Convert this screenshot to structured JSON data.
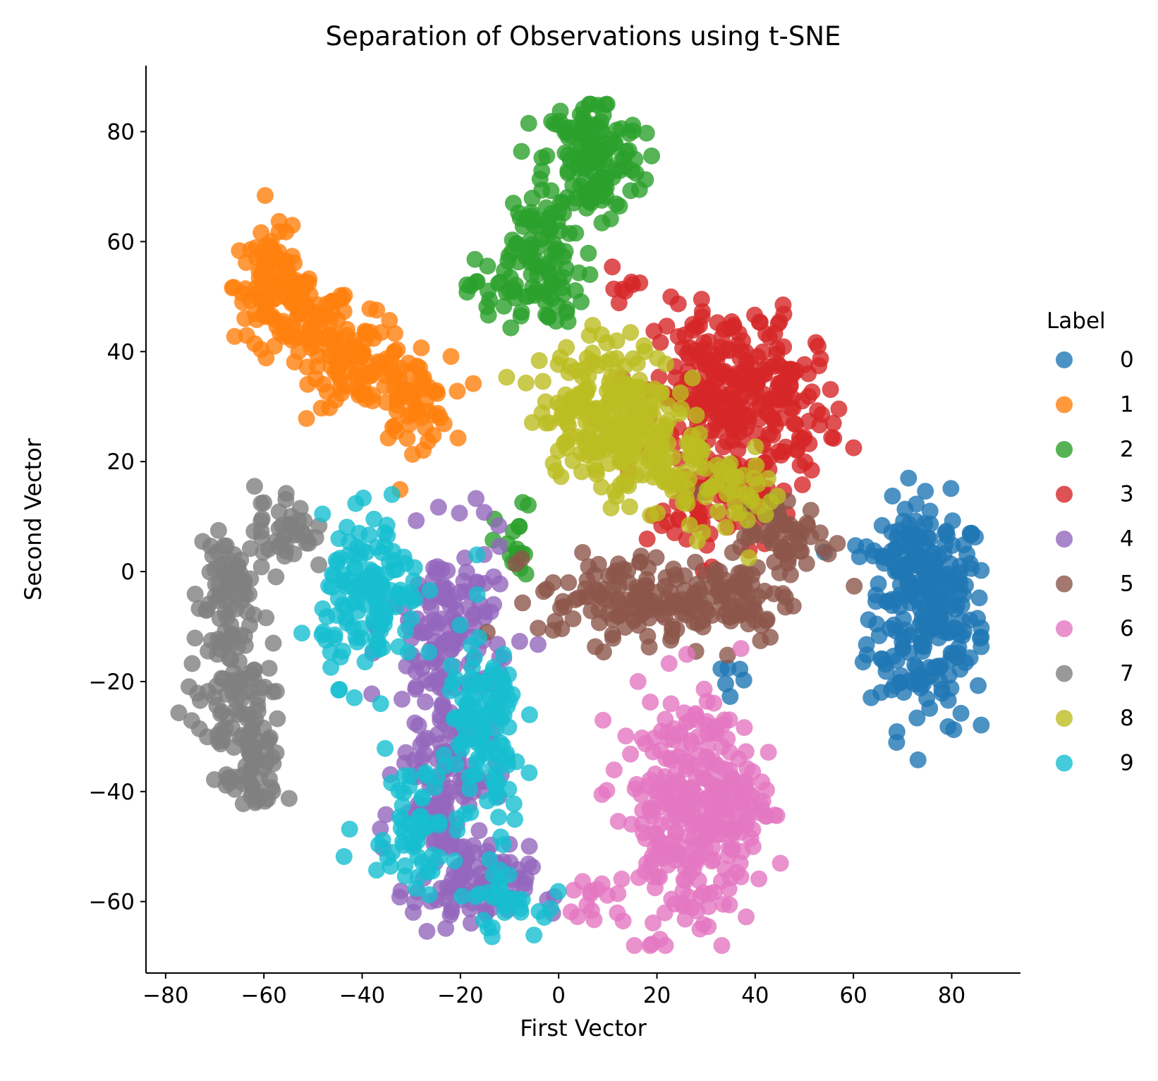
{
  "chart_data": {
    "type": "scatter",
    "title": "Separation of Observations using t-SNE",
    "xlabel": "First Vector",
    "ylabel": "Second Vector",
    "xlim": [
      -84,
      94
    ],
    "ylim": [
      -73,
      92
    ],
    "xticks": [
      -80,
      -60,
      -40,
      -20,
      0,
      20,
      40,
      60,
      80
    ],
    "yticks": [
      -60,
      -40,
      -20,
      0,
      20,
      40,
      60,
      80
    ],
    "xtick_labels": [
      "−80",
      "−60",
      "−40",
      "−20",
      "0",
      "20",
      "40",
      "60",
      "80"
    ],
    "ytick_labels": [
      "−60",
      "−40",
      "−20",
      "0",
      "20",
      "40",
      "60",
      "80"
    ],
    "grid": false,
    "legend": {
      "title": "Label",
      "placement": "right-outside"
    },
    "series": [
      {
        "name": "0",
        "color": "#1f77b4",
        "clusters": [
          {
            "cx": 75,
            "cy": -8,
            "sx": 6,
            "sy": 10,
            "n": 220
          },
          {
            "cx": 72,
            "cy": 4,
            "sx": 4,
            "sy": 3,
            "n": 50
          },
          {
            "cx": 35,
            "cy": -19,
            "sx": 2,
            "sy": 3,
            "n": 6
          }
        ]
      },
      {
        "name": "1",
        "color": "#ff7f0e",
        "clusters": [
          {
            "cx": -58,
            "cy": 52,
            "sx": 4,
            "sy": 5,
            "n": 100
          },
          {
            "cx": -50,
            "cy": 44,
            "sx": 4,
            "sy": 4,
            "n": 60
          },
          {
            "cx": -40,
            "cy": 38,
            "sx": 5,
            "sy": 4,
            "n": 80
          },
          {
            "cx": -30,
            "cy": 31,
            "sx": 4,
            "sy": 4,
            "n": 60
          }
        ]
      },
      {
        "name": "2",
        "color": "#2ca02c",
        "clusters": [
          {
            "cx": 7,
            "cy": 75,
            "sx": 5,
            "sy": 6,
            "n": 150
          },
          {
            "cx": -6,
            "cy": 60,
            "sx": 4,
            "sy": 4,
            "n": 50
          },
          {
            "cx": -7,
            "cy": 51,
            "sx": 6,
            "sy": 3,
            "n": 60
          },
          {
            "cx": -9,
            "cy": 4,
            "sx": 2,
            "sy": 4,
            "n": 18
          }
        ]
      },
      {
        "name": "3",
        "color": "#d62728",
        "clusters": [
          {
            "cx": 34,
            "cy": 32,
            "sx": 7,
            "sy": 8,
            "n": 220
          },
          {
            "cx": 47,
            "cy": 30,
            "sx": 5,
            "sy": 7,
            "n": 80
          },
          {
            "cx": 30,
            "cy": 12,
            "sx": 6,
            "sy": 5,
            "n": 60
          },
          {
            "cx": 13,
            "cy": 52,
            "sx": 2,
            "sy": 3,
            "n": 8
          }
        ]
      },
      {
        "name": "4",
        "color": "#9467bd",
        "clusters": [
          {
            "cx": -22,
            "cy": -10,
            "sx": 6,
            "sy": 8,
            "n": 120
          },
          {
            "cx": -23,
            "cy": -35,
            "sx": 5,
            "sy": 10,
            "n": 140
          },
          {
            "cx": -18,
            "cy": -58,
            "sx": 6,
            "sy": 4,
            "n": 80
          }
        ]
      },
      {
        "name": "5",
        "color": "#8c564b",
        "clusters": [
          {
            "cx": 12,
            "cy": -5,
            "sx": 8,
            "sy": 4,
            "n": 100
          },
          {
            "cx": 32,
            "cy": -5,
            "sx": 8,
            "sy": 4,
            "n": 100
          },
          {
            "cx": 46,
            "cy": 6,
            "sx": 5,
            "sy": 4,
            "n": 60
          }
        ]
      },
      {
        "name": "6",
        "color": "#e377c2",
        "clusters": [
          {
            "cx": 26,
            "cy": -44,
            "sx": 7,
            "sy": 11,
            "n": 250
          },
          {
            "cx": 34,
            "cy": -40,
            "sx": 4,
            "sy": 7,
            "n": 60
          },
          {
            "cx": 8,
            "cy": -60,
            "sx": 3,
            "sy": 2,
            "n": 12
          }
        ]
      },
      {
        "name": "7",
        "color": "#7f7f7f",
        "clusters": [
          {
            "cx": -68,
            "cy": -5,
            "sx": 3,
            "sy": 8,
            "n": 80
          },
          {
            "cx": -66,
            "cy": -25,
            "sx": 5,
            "sy": 6,
            "n": 80
          },
          {
            "cx": -62,
            "cy": -38,
            "sx": 3,
            "sy": 4,
            "n": 40
          },
          {
            "cx": -56,
            "cy": 8,
            "sx": 3,
            "sy": 4,
            "n": 40
          }
        ]
      },
      {
        "name": "8",
        "color": "#bcbd22",
        "clusters": [
          {
            "cx": 10,
            "cy": 30,
            "sx": 7,
            "sy": 6,
            "n": 200
          },
          {
            "cx": 20,
            "cy": 20,
            "sx": 6,
            "sy": 5,
            "n": 80
          },
          {
            "cx": 35,
            "cy": 15,
            "sx": 6,
            "sy": 4,
            "n": 40
          }
        ]
      },
      {
        "name": "9",
        "color": "#17becf",
        "clusters": [
          {
            "cx": -38,
            "cy": -5,
            "sx": 5,
            "sy": 7,
            "n": 140
          },
          {
            "cx": -15,
            "cy": -30,
            "sx": 4,
            "sy": 10,
            "n": 110
          },
          {
            "cx": -30,
            "cy": -45,
            "sx": 5,
            "sy": 6,
            "n": 60
          },
          {
            "cx": -12,
            "cy": -60,
            "sx": 4,
            "sy": 3,
            "n": 30
          }
        ]
      }
    ]
  }
}
